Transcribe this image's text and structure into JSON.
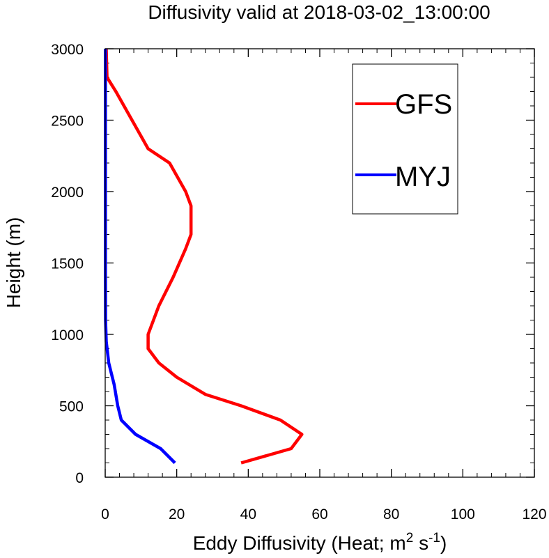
{
  "chart_data": {
    "type": "line",
    "title": "Diffusivity valid at 2018-03-02_13:00:00",
    "xlabel": {
      "main": "Eddy Diffusivity (Heat; m",
      "sup1": "2",
      "mid": " s",
      "sup2": "-1",
      "end": ")"
    },
    "ylabel": "Height (m)",
    "xlim": [
      0,
      120
    ],
    "ylim": [
      0,
      3000
    ],
    "x_ticks": [
      0,
      20,
      40,
      60,
      80,
      100,
      120
    ],
    "y_ticks": [
      0,
      500,
      1000,
      1500,
      2000,
      2500,
      3000
    ],
    "x_tick_labels": [
      "0",
      "20",
      "40",
      "60",
      "80",
      "100",
      "120"
    ],
    "y_tick_labels": [
      "0",
      "500",
      "1000",
      "1500",
      "2000",
      "2500",
      "3000"
    ],
    "grid": false,
    "legend_position": "top-right",
    "series": [
      {
        "name": "GFS",
        "color": "#ff0000",
        "points": [
          [
            38,
            100
          ],
          [
            52,
            200
          ],
          [
            55,
            300
          ],
          [
            49,
            400
          ],
          [
            38,
            500
          ],
          [
            28,
            580
          ],
          [
            20,
            700
          ],
          [
            15,
            800
          ],
          [
            12,
            900
          ],
          [
            12,
            1000
          ],
          [
            15,
            1200
          ],
          [
            19,
            1400
          ],
          [
            22.5,
            1600
          ],
          [
            24,
            1700
          ],
          [
            24,
            1900
          ],
          [
            22.5,
            2000
          ],
          [
            18,
            2200
          ],
          [
            12,
            2300
          ],
          [
            3,
            2700
          ],
          [
            0.5,
            2800
          ],
          [
            0.3,
            3000
          ]
        ]
      },
      {
        "name": "MYJ",
        "color": "#0000ff",
        "points": [
          [
            19.5,
            100
          ],
          [
            15.5,
            200
          ],
          [
            8.5,
            300
          ],
          [
            4.5,
            400
          ],
          [
            3.5,
            500
          ],
          [
            2.5,
            650
          ],
          [
            1,
            800
          ],
          [
            0.3,
            950
          ],
          [
            0.1,
            1100
          ],
          [
            0.05,
            1500
          ],
          [
            0.05,
            3000
          ]
        ]
      }
    ]
  }
}
